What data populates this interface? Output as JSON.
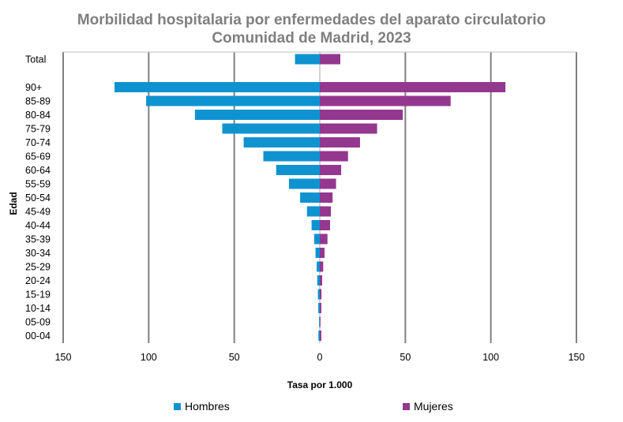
{
  "chart_data": {
    "type": "bar",
    "orientation": "horizontal-diverging",
    "title_line1": "Morbilidad hospitalaria por enfermedades del aparato circulatorio",
    "title_line2": "Comunidad de Madrid, 2023",
    "xlabel": "Tasa por 1.000",
    "ylabel": "Edad",
    "xlim": [
      -150,
      150
    ],
    "xticks": [
      -150,
      -100,
      -50,
      0,
      50,
      100,
      150
    ],
    "xtick_labels": [
      "150",
      "100",
      "50",
      "0",
      "50",
      "100",
      "150"
    ],
    "categories": [
      "Total",
      "90+",
      "85-89",
      "80-84",
      "75-79",
      "70-74",
      "65-69",
      "60-64",
      "55-59",
      "50-54",
      "45-49",
      "40-44",
      "35-39",
      "30-34",
      "25-29",
      "20-24",
      "15-19",
      "10-14",
      "05-09",
      "00-04"
    ],
    "series": [
      {
        "name": "Hombres",
        "color": "#0f93d0",
        "side": "left",
        "values": [
          14.5,
          120,
          101.5,
          73,
          57,
          44.5,
          33,
          25.5,
          18,
          11.5,
          7.5,
          4.8,
          3.3,
          2.5,
          1.8,
          1.5,
          1.1,
          0.9,
          0.4,
          0.8
        ]
      },
      {
        "name": "Mujeres",
        "color": "#94378f",
        "side": "right",
        "values": [
          12,
          108.5,
          76.5,
          48.5,
          33.5,
          23.5,
          16.5,
          12.5,
          9.5,
          7.5,
          6.5,
          6,
          4.5,
          2.8,
          2,
          1.4,
          1,
          0.9,
          0.4,
          0.9
        ]
      }
    ],
    "legend_position": "bottom"
  }
}
